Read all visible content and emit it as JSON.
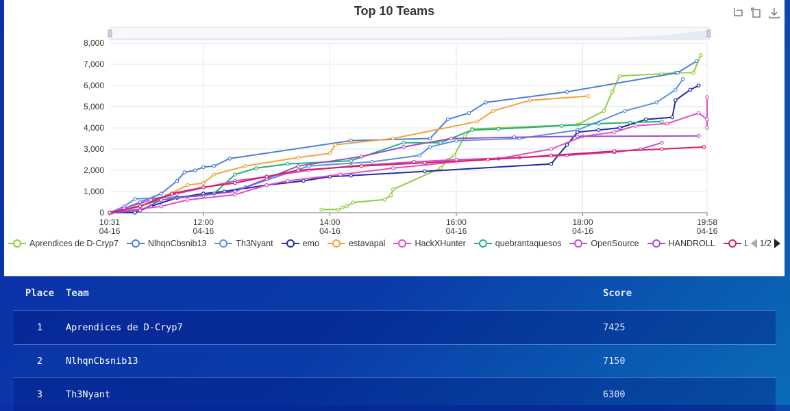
{
  "chart": {
    "title": "Top 10 Teams",
    "toolbox": [
      "zoom-icon",
      "zoom-reset-icon",
      "save-image-icon"
    ],
    "y_ticks": [
      "0",
      "1,000",
      "2,000",
      "3,000",
      "4,000",
      "5,000",
      "6,000",
      "7,000",
      "8,000"
    ],
    "x_ticks": [
      {
        "time": "10:31",
        "date": "04-16",
        "h": 10.517
      },
      {
        "time": "12:00",
        "date": "04-16",
        "h": 12.0
      },
      {
        "time": "14:00",
        "date": "04-16",
        "h": 14.0
      },
      {
        "time": "16:00",
        "date": "04-16",
        "h": 16.0
      },
      {
        "time": "18:00",
        "date": "04-16",
        "h": 18.0
      },
      {
        "time": "19:58",
        "date": "04-16",
        "h": 19.967
      }
    ],
    "legend_page": "1/2"
  },
  "chart_data": {
    "type": "line",
    "title": "Top 10 Teams",
    "xlabel": "",
    "ylabel": "",
    "x_range": [
      "04-16 10:31",
      "04-16 19:58"
    ],
    "ylim": [
      0,
      8000
    ],
    "grid": true,
    "legend_placement": "bottom",
    "series": [
      {
        "name": "Aprendices de D-Cryp7",
        "color": "#91cc3c",
        "points": [
          [
            "13:52",
            150
          ],
          [
            "14:08",
            150
          ],
          [
            "14:12",
            250
          ],
          [
            "14:16",
            300
          ],
          [
            "14:22",
            480
          ],
          [
            "14:52",
            620
          ],
          [
            "14:58",
            820
          ],
          [
            "15:00",
            1100
          ],
          [
            "15:45",
            2100
          ],
          [
            "15:52",
            2500
          ],
          [
            "15:58",
            2700
          ],
          [
            "16:08",
            3600
          ],
          [
            "16:15",
            3950
          ],
          [
            "17:55",
            4150
          ],
          [
            "18:20",
            4800
          ],
          [
            "18:28",
            5700
          ],
          [
            "18:35",
            6450
          ],
          [
            "19:15",
            6550
          ],
          [
            "19:28",
            6600
          ],
          [
            "19:45",
            6600
          ],
          [
            "19:52",
            7425
          ]
        ]
      },
      {
        "name": "NlhqnCbsnib13",
        "color": "#4a7fd8",
        "points": [
          [
            "10:33",
            0
          ],
          [
            "10:45",
            200
          ],
          [
            "11:00",
            500
          ],
          [
            "11:20",
            900
          ],
          [
            "11:35",
            1500
          ],
          [
            "11:42",
            1900
          ],
          [
            "11:52",
            2000
          ],
          [
            "12:00",
            2150
          ],
          [
            "12:10",
            2200
          ],
          [
            "12:25",
            2550
          ],
          [
            "14:20",
            3400
          ],
          [
            "15:35",
            3500
          ],
          [
            "15:52",
            4400
          ],
          [
            "16:12",
            4700
          ],
          [
            "16:28",
            5200
          ],
          [
            "17:45",
            5700
          ],
          [
            "19:30",
            6600
          ],
          [
            "19:48",
            7150
          ]
        ]
      },
      {
        "name": "Th3Nyant",
        "color": "#5a8fe0",
        "points": [
          [
            "10:31",
            0
          ],
          [
            "10:45",
            300
          ],
          [
            "10:55",
            650
          ],
          [
            "12:00",
            800
          ],
          [
            "12:40",
            1200
          ],
          [
            "13:40",
            2200
          ],
          [
            "14:40",
            2400
          ],
          [
            "15:25",
            2700
          ],
          [
            "15:35",
            3100
          ],
          [
            "16:00",
            3400
          ],
          [
            "17:00",
            3500
          ],
          [
            "17:55",
            3900
          ],
          [
            "18:40",
            4800
          ],
          [
            "19:10",
            5200
          ],
          [
            "19:28",
            5800
          ],
          [
            "19:35",
            6300
          ]
        ]
      },
      {
        "name": "emo",
        "color": "#1f2aa8",
        "points": [
          [
            "10:31",
            0
          ],
          [
            "10:55",
            0
          ],
          [
            "11:10",
            300
          ],
          [
            "11:35",
            700
          ],
          [
            "12:00",
            900
          ],
          [
            "12:20",
            1000
          ],
          [
            "13:00",
            1300
          ],
          [
            "13:35",
            1500
          ],
          [
            "14:00",
            1700
          ],
          [
            "14:20",
            1750
          ],
          [
            "15:30",
            1950
          ],
          [
            "17:30",
            2300
          ],
          [
            "17:45",
            3200
          ],
          [
            "17:55",
            3800
          ],
          [
            "18:15",
            3900
          ],
          [
            "18:35",
            4000
          ],
          [
            "19:00",
            4400
          ],
          [
            "19:25",
            4500
          ],
          [
            "19:28",
            5300
          ],
          [
            "19:42",
            5800
          ],
          [
            "19:50",
            6000
          ]
        ]
      },
      {
        "name": "estavapal",
        "color": "#f2a23a",
        "points": [
          [
            "10:31",
            0
          ],
          [
            "11:00",
            300
          ],
          [
            "11:25",
            800
          ],
          [
            "11:45",
            1300
          ],
          [
            "12:00",
            1400
          ],
          [
            "12:10",
            1800
          ],
          [
            "12:40",
            2200
          ],
          [
            "13:30",
            2600
          ],
          [
            "14:00",
            2800
          ],
          [
            "14:05",
            3200
          ],
          [
            "15:00",
            3500
          ],
          [
            "16:20",
            4300
          ],
          [
            "16:35",
            4800
          ],
          [
            "17:10",
            5300
          ],
          [
            "18:05",
            5500
          ]
        ]
      },
      {
        "name": "HackXHunter",
        "color": "#e04fc4",
        "points": [
          [
            "10:31",
            0
          ],
          [
            "11:20",
            300
          ],
          [
            "11:45",
            600
          ],
          [
            "12:30",
            850
          ],
          [
            "13:00",
            1300
          ],
          [
            "13:20",
            1500
          ],
          [
            "14:10",
            1800
          ],
          [
            "15:00",
            2100
          ],
          [
            "16:00",
            2400
          ],
          [
            "16:40",
            2550
          ],
          [
            "17:30",
            3000
          ],
          [
            "18:00",
            3600
          ],
          [
            "18:30",
            3800
          ],
          [
            "18:50",
            4100
          ],
          [
            "19:20",
            4200
          ],
          [
            "19:50",
            4700
          ],
          [
            "20:00",
            4400
          ],
          [
            "20:01",
            5450
          ],
          [
            "20:02",
            4000
          ]
        ]
      },
      {
        "name": "quebrantaquesos",
        "color": "#22b07a",
        "points": [
          [
            "10:31",
            0
          ],
          [
            "10:50",
            200
          ],
          [
            "11:20",
            600
          ],
          [
            "12:10",
            900
          ],
          [
            "12:30",
            1800
          ],
          [
            "12:50",
            2100
          ],
          [
            "13:20",
            2300
          ],
          [
            "14:20",
            2450
          ],
          [
            "15:10",
            3300
          ],
          [
            "15:45",
            3300
          ],
          [
            "16:15",
            3900
          ],
          [
            "16:40",
            3950
          ],
          [
            "17:40",
            4100
          ],
          [
            "18:15",
            4200
          ],
          [
            "18:45",
            4250
          ],
          [
            "19:15",
            4300
          ]
        ]
      },
      {
        "name": "OpenSource",
        "color": "#c64ccf",
        "points": [
          [
            "10:31",
            0
          ],
          [
            "10:45",
            200
          ],
          [
            "11:10",
            600
          ],
          [
            "11:35",
            900
          ],
          [
            "12:30",
            1500
          ],
          [
            "13:00",
            1700
          ],
          [
            "13:40",
            2000
          ],
          [
            "14:20",
            2200
          ],
          [
            "15:20",
            2400
          ],
          [
            "16:00",
            2500
          ],
          [
            "17:00",
            2600
          ],
          [
            "17:45",
            2700
          ],
          [
            "18:30",
            2850
          ],
          [
            "18:55",
            3000
          ],
          [
            "19:15",
            3300
          ]
        ]
      },
      {
        "name": "HANDROLL",
        "color": "#9a4fd4",
        "points": [
          [
            "10:31",
            0
          ],
          [
            "11:00",
            100
          ],
          [
            "11:20",
            600
          ],
          [
            "12:30",
            1000
          ],
          [
            "13:00",
            1600
          ],
          [
            "13:30",
            2200
          ],
          [
            "14:30",
            2650
          ],
          [
            "15:10",
            3100
          ],
          [
            "15:55",
            3500
          ],
          [
            "16:55",
            3560
          ],
          [
            "17:55",
            3600
          ],
          [
            "19:50",
            3620
          ]
        ]
      },
      {
        "name": "L",
        "color": "#d81e5b",
        "points": [
          [
            "10:31",
            0
          ],
          [
            "11:00",
            300
          ],
          [
            "11:30",
            900
          ],
          [
            "12:00",
            1200
          ],
          [
            "12:30",
            1400
          ],
          [
            "13:00",
            1700
          ],
          [
            "13:30",
            2000
          ],
          [
            "14:30",
            2200
          ],
          [
            "15:30",
            2350
          ],
          [
            "16:30",
            2500
          ],
          [
            "17:30",
            2700
          ],
          [
            "18:30",
            2900
          ],
          [
            "19:15",
            3000
          ],
          [
            "19:55",
            3100
          ]
        ]
      }
    ]
  },
  "scoreboard": {
    "headers": {
      "place": "Place",
      "team": "Team",
      "score": "Score"
    },
    "rows": [
      {
        "place": "1",
        "team": "Aprendices de D-Cryp7",
        "score": "7425"
      },
      {
        "place": "2",
        "team": "NlhqnCbsnib13",
        "score": "7150"
      },
      {
        "place": "3",
        "team": "Th3Nyant",
        "score": "6300"
      }
    ]
  }
}
